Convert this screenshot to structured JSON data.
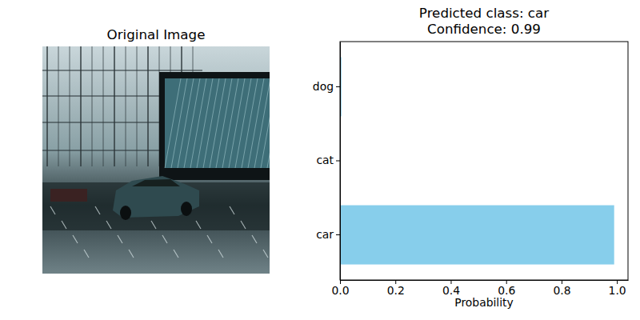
{
  "chart_data": [
    {
      "type": "image",
      "title": "Original Image"
    },
    {
      "type": "bar",
      "title": "Predicted class: car\nConfidence: 0.99",
      "orientation": "horizontal",
      "categories": [
        "car",
        "cat",
        "dog"
      ],
      "values": [
        0.99,
        0.001,
        0.005
      ],
      "color": "#87ceeb",
      "xlabel": "Probability",
      "xlim": [
        0,
        1.04
      ],
      "xticks": [
        {
          "value": 0,
          "label": "0.0"
        },
        {
          "value": 0.2,
          "label": "0.2"
        },
        {
          "value": 0.4,
          "label": "0.4"
        },
        {
          "value": 0.6,
          "label": "0.6"
        },
        {
          "value": 0.8,
          "label": "0.8"
        },
        {
          "value": 1,
          "label": "1.0"
        }
      ]
    }
  ]
}
